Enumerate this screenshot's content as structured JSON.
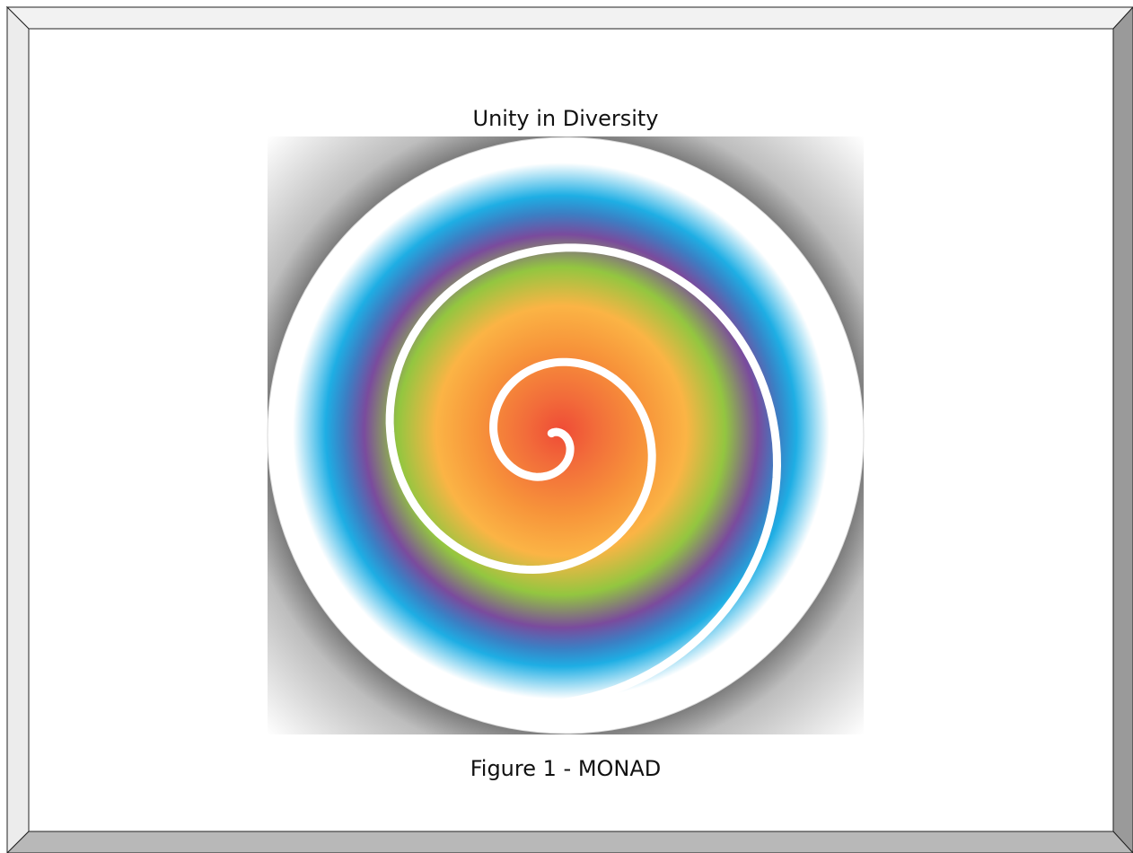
{
  "title": "Unity in Diversity",
  "caption": "Figure 1 - MONAD"
}
